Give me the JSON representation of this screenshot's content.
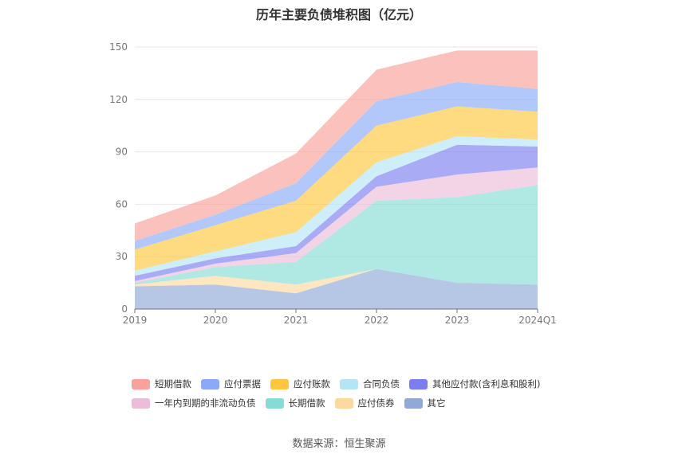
{
  "title": "历年主要负债堆积图（亿元）",
  "source": "数据来源：恒生聚源",
  "chart_data": {
    "type": "area",
    "stacked": true,
    "x": [
      "2019",
      "2020",
      "2021",
      "2022",
      "2023",
      "2024Q1"
    ],
    "ylim": [
      0,
      150
    ],
    "yticks": [
      0,
      30,
      60,
      90,
      120,
      150
    ],
    "grid": true,
    "legend_position": "bottom",
    "series": [
      {
        "name": "其它",
        "color": "#8fa9d8",
        "values": [
          13,
          14,
          9,
          23,
          15,
          14
        ]
      },
      {
        "name": "应付债券",
        "color": "#fdd9a0",
        "values": [
          1,
          5,
          5,
          0,
          0,
          0
        ]
      },
      {
        "name": "长期借款",
        "color": "#86dbd6",
        "values": [
          1,
          5,
          13,
          39,
          49,
          57
        ]
      },
      {
        "name": "一年内到期的非流动负债",
        "color": "#edbcd9",
        "values": [
          1,
          2,
          5,
          8,
          13,
          10
        ]
      },
      {
        "name": "其他应付款(含利息和股利)",
        "color": "#7b7ef0",
        "values": [
          3,
          3,
          4,
          6,
          17,
          12
        ]
      },
      {
        "name": "合同负债",
        "color": "#b3e5f7",
        "values": [
          3,
          4,
          8,
          8,
          5,
          4
        ]
      },
      {
        "name": "应付账款",
        "color": "#fdc63c",
        "values": [
          12,
          15,
          18,
          21,
          17,
          16
        ]
      },
      {
        "name": "应付票据",
        "color": "#8aaaf8",
        "values": [
          5,
          6,
          10,
          14,
          14,
          13
        ]
      },
      {
        "name": "短期借款",
        "color": "#f9a19a",
        "values": [
          10,
          11,
          17,
          18,
          18,
          22
        ]
      }
    ]
  },
  "legend_rows": [
    [
      {
        "label": "短期借款",
        "color": "#f9a19a"
      },
      {
        "label": "应付票据",
        "color": "#8aaaf8"
      },
      {
        "label": "应付账款",
        "color": "#fdc63c"
      },
      {
        "label": "合同负债",
        "color": "#b3e5f7"
      },
      {
        "label": "其他应付款(含利息和股利)",
        "color": "#7b7ef0"
      }
    ],
    [
      {
        "label": "一年内到期的非流动负债",
        "color": "#edbcd9"
      },
      {
        "label": "长期借款",
        "color": "#86dbd6"
      },
      {
        "label": "应付债券",
        "color": "#fdd9a0"
      },
      {
        "label": "其它",
        "color": "#8fa9d8"
      }
    ]
  ]
}
